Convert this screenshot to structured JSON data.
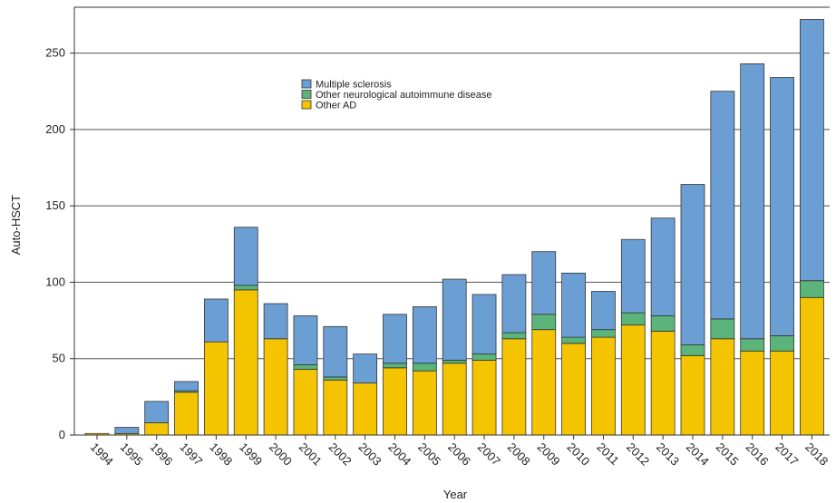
{
  "chart_data": {
    "type": "bar",
    "stacked": true,
    "xlabel": "Year",
    "ylabel": "Auto-HSCT",
    "ylim": [
      0,
      280
    ],
    "yticks": [
      0,
      50,
      100,
      150,
      200,
      250
    ],
    "grid": "horizontal",
    "legend_placement": "top-center",
    "categories": [
      "1994",
      "1995",
      "1996",
      "1997",
      "1998",
      "1999",
      "2000",
      "2001",
      "2002",
      "2003",
      "2004",
      "2005",
      "2006",
      "2007",
      "2008",
      "2009",
      "2010",
      "2011",
      "2012",
      "2013",
      "2014",
      "2015",
      "2016",
      "2017",
      "2018"
    ],
    "series": [
      {
        "name": "Other AD",
        "color": "#f5c400",
        "values": [
          1,
          1,
          8,
          28,
          61,
          95,
          63,
          43,
          36,
          34,
          44,
          42,
          47,
          49,
          63,
          69,
          60,
          64,
          72,
          68,
          52,
          63,
          55,
          55,
          90
        ]
      },
      {
        "name": "Other neurological autoimmune disease",
        "color": "#5bb57a",
        "values": [
          0,
          0,
          0,
          1,
          0,
          3,
          0,
          3,
          2,
          0,
          3,
          5,
          2,
          4,
          4,
          10,
          4,
          5,
          8,
          10,
          7,
          13,
          8,
          10,
          11
        ]
      },
      {
        "name": "Multiple sclerosis",
        "color": "#6b9fd4",
        "values": [
          0,
          4,
          14,
          6,
          28,
          38,
          23,
          32,
          33,
          19,
          32,
          37,
          53,
          39,
          38,
          41,
          42,
          25,
          48,
          64,
          105,
          149,
          180,
          169,
          171
        ]
      }
    ],
    "legend_order": [
      "Multiple sclerosis",
      "Other neurological autoimmune disease",
      "Other AD"
    ]
  }
}
